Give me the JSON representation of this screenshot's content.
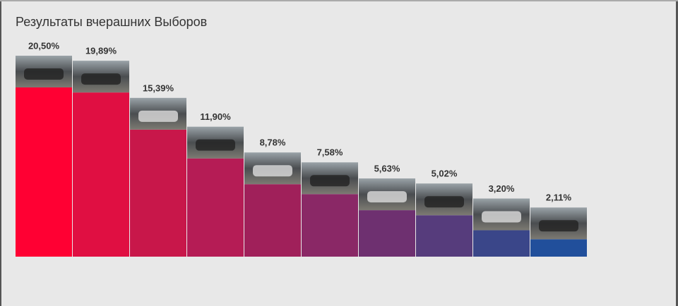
{
  "chart_data": {
    "type": "bar",
    "title": "Результаты вчерашних Выборов",
    "values": [
      20.5,
      19.89,
      15.39,
      11.9,
      8.78,
      7.58,
      5.63,
      5.02,
      3.2,
      2.11
    ],
    "value_labels": [
      "20,50%",
      "19,89%",
      "15,39%",
      "11,90%",
      "8,78%",
      "7,58%",
      "5,63%",
      "5,02%",
      "3,20%",
      "2,11%"
    ],
    "colors": [
      "#ff0033",
      "#e00f42",
      "#c8174a",
      "#b51c55",
      "#a0205a",
      "#8a2866",
      "#6e3070",
      "#563c7c",
      "#3a4689",
      "#214f9b"
    ]
  }
}
